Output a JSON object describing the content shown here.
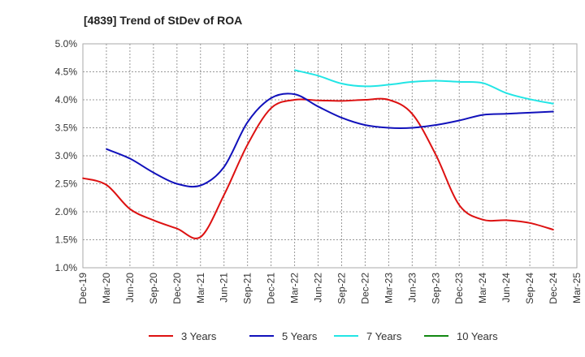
{
  "chart_data": {
    "type": "line",
    "title": "[4839]  Trend of StDev of ROA",
    "xlabel": "",
    "ylabel": "",
    "categories": [
      "Dec-19",
      "Mar-20",
      "Jun-20",
      "Sep-20",
      "Dec-20",
      "Mar-21",
      "Jun-21",
      "Sep-21",
      "Dec-21",
      "Mar-22",
      "Jun-22",
      "Sep-22",
      "Dec-22",
      "Mar-23",
      "Jun-23",
      "Sep-23",
      "Dec-23",
      "Mar-24",
      "Jun-24",
      "Sep-24",
      "Dec-24",
      "Mar-25"
    ],
    "y_ticks": [
      "1.0%",
      "1.5%",
      "2.0%",
      "2.5%",
      "3.0%",
      "3.5%",
      "4.0%",
      "4.5%",
      "5.0%"
    ],
    "ylim": [
      1.0,
      5.0
    ],
    "grid": true,
    "legend_position": "bottom",
    "series": [
      {
        "name": "3 Years",
        "color": "#dd1111",
        "values": [
          2.6,
          2.48,
          2.05,
          1.85,
          1.7,
          1.55,
          2.3,
          3.2,
          3.85,
          4.0,
          3.99,
          3.98,
          4.0,
          4.0,
          3.75,
          3.02,
          2.12,
          1.86,
          1.85,
          1.8,
          1.68,
          null
        ]
      },
      {
        "name": "5 Years",
        "color": "#1111bb",
        "values": [
          null,
          3.12,
          2.95,
          2.7,
          2.5,
          2.47,
          2.8,
          3.6,
          4.03,
          4.1,
          3.88,
          3.68,
          3.55,
          3.5,
          3.5,
          3.55,
          3.63,
          3.73,
          3.75,
          3.77,
          3.79,
          null
        ]
      },
      {
        "name": "7 Years",
        "color": "#22e5e5",
        "values": [
          null,
          null,
          null,
          null,
          null,
          null,
          null,
          null,
          null,
          4.53,
          4.43,
          4.29,
          4.24,
          4.27,
          4.32,
          4.34,
          4.32,
          4.3,
          4.12,
          4.01,
          3.93,
          null
        ]
      },
      {
        "name": "10 Years",
        "color": "#118811",
        "values": [
          null,
          null,
          null,
          null,
          null,
          null,
          null,
          null,
          null,
          null,
          null,
          null,
          null,
          null,
          null,
          null,
          null,
          null,
          null,
          null,
          null,
          null
        ]
      }
    ]
  }
}
